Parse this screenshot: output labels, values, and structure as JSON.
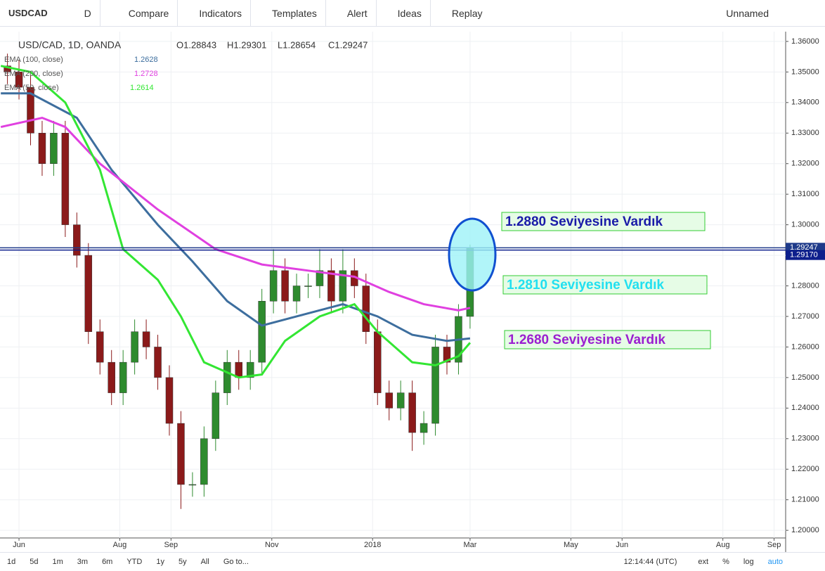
{
  "toolbar": {
    "symbol": "USDCAD",
    "interval": "D",
    "items": [
      "Compare",
      "Indicators",
      "Templates",
      "Alert",
      "Ideas",
      "Replay"
    ],
    "layout": "Unnamed"
  },
  "bottom_bar": {
    "ranges": [
      "1d",
      "5d",
      "1m",
      "3m",
      "6m",
      "YTD",
      "1y",
      "5y",
      "All",
      "Go to..."
    ],
    "time": "12:14:44 (UTC)",
    "options": [
      "ext",
      "%",
      "log",
      "auto"
    ]
  },
  "chart_data": {
    "type": "candlestick",
    "title": "USD/CAD, 1D, OANDA",
    "ohlc_text": [
      "O1.28843",
      "H1.29301",
      "L1.28654",
      "C1.29247"
    ],
    "x": [
      -7,
      0,
      7,
      14,
      21,
      28,
      35,
      42,
      49,
      56,
      63,
      70,
      77,
      84,
      91,
      98,
      105,
      112,
      119,
      126,
      133,
      140,
      147,
      154,
      161,
      168,
      175,
      182,
      189,
      196,
      203,
      210,
      217,
      224,
      231,
      238,
      245,
      252,
      259,
      266,
      273
    ],
    "open": [
      1.352,
      1.35,
      1.345,
      1.33,
      1.32,
      1.33,
      1.3,
      1.29,
      1.265,
      1.255,
      1.245,
      1.255,
      1.265,
      1.26,
      1.25,
      1.235,
      1.215,
      1.215,
      1.23,
      1.245,
      1.255,
      1.25,
      1.255,
      1.275,
      1.285,
      1.275,
      1.28,
      1.28,
      1.285,
      1.275,
      1.285,
      1.28,
      1.265,
      1.245,
      1.24,
      1.245,
      1.232,
      1.235,
      1.26,
      1.255,
      1.27
    ],
    "high": [
      1.356,
      1.354,
      1.349,
      1.334,
      1.334,
      1.334,
      1.304,
      1.294,
      1.269,
      1.259,
      1.259,
      1.269,
      1.269,
      1.264,
      1.254,
      1.239,
      1.219,
      1.234,
      1.249,
      1.259,
      1.259,
      1.259,
      1.279,
      1.292,
      1.289,
      1.284,
      1.284,
      1.292,
      1.289,
      1.292,
      1.289,
      1.284,
      1.269,
      1.249,
      1.249,
      1.249,
      1.239,
      1.264,
      1.264,
      1.274,
      1.2935
    ],
    "low": [
      1.346,
      1.341,
      1.326,
      1.316,
      1.316,
      1.296,
      1.286,
      1.261,
      1.251,
      1.241,
      1.241,
      1.251,
      1.256,
      1.246,
      1.231,
      1.207,
      1.211,
      1.211,
      1.226,
      1.241,
      1.246,
      1.246,
      1.251,
      1.271,
      1.271,
      1.271,
      1.276,
      1.276,
      1.271,
      1.271,
      1.276,
      1.261,
      1.241,
      1.236,
      1.236,
      1.226,
      1.228,
      1.231,
      1.251,
      1.251,
      1.266
    ],
    "close": [
      1.35,
      1.345,
      1.33,
      1.32,
      1.33,
      1.3,
      1.29,
      1.265,
      1.255,
      1.245,
      1.255,
      1.265,
      1.26,
      1.25,
      1.235,
      1.215,
      1.215,
      1.23,
      1.245,
      1.255,
      1.25,
      1.255,
      1.275,
      1.285,
      1.275,
      1.28,
      1.28,
      1.285,
      1.275,
      1.285,
      1.28,
      1.265,
      1.245,
      1.24,
      1.245,
      1.232,
      1.235,
      1.26,
      1.255,
      1.27,
      1.2925
    ],
    "up_color": "#2e8b2e",
    "down_color": "#8b1a1a",
    "series": [
      {
        "name": "EMA (100, close)",
        "last": 1.2628,
        "color": "#3d6e9e",
        "x": [
          -11,
          7,
          35,
          56,
          84,
          105,
          126,
          147,
          168,
          196,
          217,
          238,
          259,
          273
        ],
        "values": [
          1.343,
          1.343,
          1.335,
          1.318,
          1.3,
          1.288,
          1.275,
          1.267,
          1.27,
          1.274,
          1.27,
          1.264,
          1.262,
          1.2628
        ]
      },
      {
        "name": "EMA (200, close)",
        "last": 1.2728,
        "color": "#e040e0",
        "x": [
          -11,
          14,
          28,
          49,
          84,
          119,
          147,
          175,
          203,
          224,
          245,
          266,
          273
        ],
        "values": [
          1.332,
          1.335,
          1.332,
          1.32,
          1.305,
          1.292,
          1.287,
          1.285,
          1.283,
          1.278,
          1.274,
          1.272,
          1.2728
        ]
      },
      {
        "name": "EMA (50, close)",
        "last": 1.2614,
        "color": "#33e633",
        "x": [
          -11,
          7,
          28,
          49,
          63,
          84,
          98,
          112,
          133,
          147,
          161,
          182,
          203,
          217,
          238,
          252,
          266,
          273
        ],
        "values": [
          1.352,
          1.35,
          1.34,
          1.318,
          1.292,
          1.282,
          1.27,
          1.255,
          1.25,
          1.251,
          1.262,
          1.27,
          1.274,
          1.265,
          1.255,
          1.254,
          1.257,
          1.2614
        ]
      }
    ],
    "price_lines": [
      {
        "value": 1.29247,
        "label": "1.29247",
        "color": "#1e3a8a"
      },
      {
        "value": 1.2917,
        "label": "1.29170",
        "color": "#0d1f8c"
      }
    ],
    "annotations": [
      {
        "text": "1.2880 Seviyesine Vardık",
        "color": "#1a1aa8"
      },
      {
        "text": "1.2810 Seviyesine Vardık",
        "color": "#22e0f0"
      },
      {
        "text": "1.2680 Seviyesine Vardık",
        "color": "#9b1fd0"
      }
    ],
    "xlim": [
      -11.5,
      464
    ],
    "ylim": [
      1.1929,
      1.3632
    ],
    "grid": true,
    "xticks": [
      {
        "value": 0,
        "label": "Jun"
      },
      {
        "value": 61,
        "label": "Aug"
      },
      {
        "value": 92,
        "label": "Sep"
      },
      {
        "value": 153,
        "label": "Nov"
      },
      {
        "value": 214,
        "label": "2018"
      },
      {
        "value": 273,
        "label": "Mar"
      },
      {
        "value": 334,
        "label": "May"
      },
      {
        "value": 365,
        "label": "Jun"
      },
      {
        "value": 426,
        "label": "Aug"
      },
      {
        "value": 457,
        "label": "Sep"
      }
    ],
    "yticks": [
      {
        "value": 1.2,
        "label": "1.20000"
      },
      {
        "value": 1.21,
        "label": "1.21000"
      },
      {
        "value": 1.22,
        "label": "1.22000"
      },
      {
        "value": 1.23,
        "label": "1.23000"
      },
      {
        "value": 1.24,
        "label": "1.24000"
      },
      {
        "value": 1.25,
        "label": "1.25000"
      },
      {
        "value": 1.26,
        "label": "1.26000"
      },
      {
        "value": 1.27,
        "label": "1.27000"
      },
      {
        "value": 1.28,
        "label": "1.28000"
      },
      {
        "value": 1.29,
        "label": "1.29000"
      },
      {
        "value": 1.3,
        "label": "1.30000"
      },
      {
        "value": 1.31,
        "label": "1.31000"
      },
      {
        "value": 1.32,
        "label": "1.32000"
      },
      {
        "value": 1.33,
        "label": "1.33000"
      },
      {
        "value": 1.34,
        "label": "1.34000"
      },
      {
        "value": 1.35,
        "label": "1.35000"
      },
      {
        "value": 1.36,
        "label": "1.36000"
      }
    ]
  }
}
